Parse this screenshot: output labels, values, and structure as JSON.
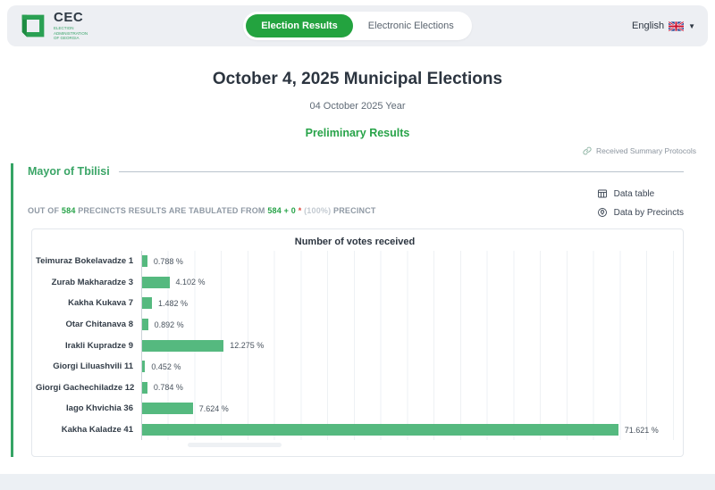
{
  "header": {
    "logo": {
      "text": "CEC",
      "subtext": "ELECTION\nADMINISTRATION\nOF GEORGIA"
    },
    "tabs": [
      {
        "label": "Election Results",
        "active": true
      },
      {
        "label": "Electronic Elections",
        "active": false
      }
    ],
    "language": {
      "label": "English"
    }
  },
  "hero": {
    "title": "October 4, 2025 Municipal Elections",
    "subtitle": "04 October 2025 Year",
    "status": "Preliminary Results",
    "protocols_link": "Received Summary Protocols"
  },
  "section": {
    "title": "Mayor of Tbilisi",
    "actions": [
      {
        "label": "Data table",
        "icon": "table-icon"
      },
      {
        "label": "Data by Precincts",
        "icon": "location-icon"
      }
    ],
    "tabulation": {
      "prefix": "OUT OF",
      "total": "584",
      "middle": "PRECINCTS RESULTS ARE TABULATED FROM",
      "tabulated": "584 + 0",
      "asterisk": "*",
      "percent": "(100%)",
      "suffix": "PRECINCT"
    }
  },
  "chart_data": {
    "type": "bar",
    "orientation": "horizontal",
    "title": "Number of votes received",
    "categories": [
      "Teimuraz Bokelavadze 1",
      "Zurab Makharadze 3",
      "Kakha Kukava 7",
      "Otar Chitanava 8",
      "Irakli Kupradze 9",
      "Giorgi Liluashvili 11",
      "Giorgi Gachechiladze 12",
      "Iago Khvichia 36",
      "Kakha Kaladze 41"
    ],
    "values": [
      0.788,
      4.102,
      1.482,
      0.892,
      12.275,
      0.452,
      0.784,
      7.624,
      71.621
    ],
    "labels": [
      "0.788 %",
      "4.102 %",
      "1.482 %",
      "0.892 %",
      "12.275 %",
      "0.452 %",
      "0.784 %",
      "7.624 %",
      "71.621 %"
    ],
    "xlabel": "",
    "ylabel": "",
    "xlim": [
      0,
      80
    ],
    "unit": "%",
    "grid": true,
    "legend": "none",
    "bar_color": "#55b97f"
  },
  "colors": {
    "accent_green": "#23a33f",
    "text_green": "#27a348",
    "bar_green": "#55b97f",
    "asterisk_red": "#e0483e",
    "header_bg": "#edeff3",
    "page_bg": "#ecf0f4"
  }
}
